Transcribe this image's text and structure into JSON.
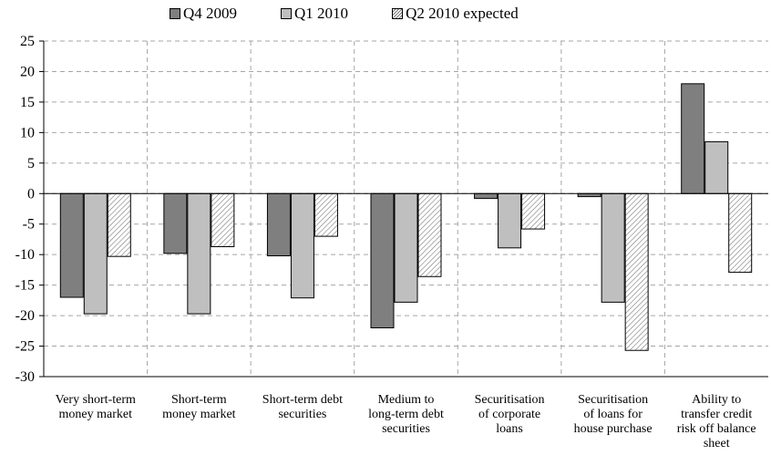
{
  "chart_data": {
    "type": "bar",
    "categories": [
      "Very short-term\nmoney market",
      "Short-term\nmoney market",
      "Short-term debt\nsecurities",
      "Medium to\nlong-term debt\nsecurities",
      "Securitisation\nof corporate\nloans",
      "Securitisation\nof loans for\nhouse purchase",
      "Ability to\ntransfer credit\nrisk off balance\nsheet"
    ],
    "series": [
      {
        "name": "Q4 2009",
        "values": [
          -17,
          -9.8,
          -10.2,
          -22,
          -0.8,
          -0.5,
          18
        ],
        "color": "#7f7f7f",
        "pattern": "solid"
      },
      {
        "name": "Q1 2010",
        "values": [
          -19.7,
          -19.7,
          -17.1,
          -17.8,
          -8.9,
          -17.8,
          8.5
        ],
        "color": "#bfbfbf",
        "pattern": "solid"
      },
      {
        "name": "Q2 2010 expected",
        "values": [
          -10.3,
          -8.7,
          -7,
          -13.6,
          -5.8,
          -25.7,
          -12.9
        ],
        "color": "#ffffff",
        "pattern": "hatched"
      }
    ],
    "ylim": [
      -30,
      25
    ],
    "yticks": [
      "25",
      "20",
      "15",
      "10",
      "5",
      "0",
      "-5",
      "-10",
      "-15",
      "-20",
      "-25",
      "-30"
    ],
    "grid": true,
    "legend_position": "top",
    "title": "",
    "xlabel": "",
    "ylabel": ""
  }
}
